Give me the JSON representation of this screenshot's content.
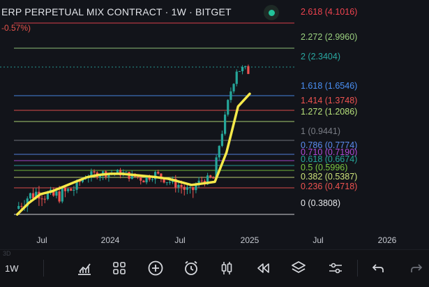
{
  "header": {
    "title": "ERP PERPETUAL MIX CONTRACT · 1W · BITGET",
    "change": "-0.57%)"
  },
  "colors": {
    "background": "#12141a",
    "candle_up": "#26a69a",
    "candle_down": "#ef5350",
    "ma": "#f5e94a",
    "live": "#22c39a"
  },
  "fib_levels": [
    {
      "ratio": "2.618",
      "price": "4.1016",
      "color": "#f0434f",
      "label": "2.618 (4.1016)"
    },
    {
      "ratio": "2.272",
      "price": "2.9960",
      "color": "#9bd17f",
      "label": "2.272 (2.9960)"
    },
    {
      "ratio": "2",
      "price": "2.3404",
      "color": "#2aa6a0",
      "label": "2 (2.3404)"
    },
    {
      "ratio": "1.618",
      "price": "1.6546",
      "color": "#4a90f5",
      "label": "1.618 (1.6546)"
    },
    {
      "ratio": "1.414",
      "price": "1.3748",
      "color": "#ef5350",
      "label": "1.414 (1.3748)"
    },
    {
      "ratio": "1.272",
      "price": "1.2086",
      "color": "#b6e07a",
      "label": "1.272 (1.2086)"
    },
    {
      "ratio": "1",
      "price": "0.9441",
      "color": "#7a7d85",
      "label": "1 (0.9441)"
    },
    {
      "ratio": "0.786",
      "price": "0.7774",
      "color": "#5b8df0",
      "label": "0.786 (0.7774)"
    },
    {
      "ratio": "0.71",
      "price": "0.7190",
      "color": "#b04bd8",
      "label": "0.710 (0.7190)"
    },
    {
      "ratio": "0.618",
      "price": "0.6674",
      "color": "#26a69a",
      "label": "0.618 (0.6674)"
    },
    {
      "ratio": "0.5",
      "price": "0.5996",
      "color": "#7cc83f",
      "label": "0.5 (0.5996)"
    },
    {
      "ratio": "0.382",
      "price": "0.5387",
      "color": "#cde27a",
      "label": "0.382 (0.5387)"
    },
    {
      "ratio": "0.236",
      "price": "0.4718",
      "color": "#ef5350",
      "label": "0.236 (0.4718)"
    },
    {
      "ratio": "0",
      "price": "0.3808",
      "color": "#e6e7ea",
      "label": "0 (0.3808)"
    }
  ],
  "x_axis": {
    "labels": [
      "Jul",
      "2024",
      "Jul",
      "2025",
      "Jul",
      "2026"
    ]
  },
  "chart_data": {
    "type": "candlestick",
    "interval": "1W",
    "price_series": {
      "name": "",
      "x": [
        "2023-05",
        "2023-06",
        "2023-07",
        "2023-08",
        "2023-09",
        "2023-10",
        "2023-11",
        "2023-12",
        "2024-01",
        "2024-02",
        "2024-03",
        "2024-04",
        "2024-05",
        "2024-06",
        "2024-07",
        "2024-08",
        "2024-09",
        "2024-10",
        "2024-11",
        "2024-12",
        "2025-01"
      ],
      "close": [
        0.4,
        0.44,
        0.46,
        0.44,
        0.45,
        0.47,
        0.55,
        0.57,
        0.58,
        0.58,
        0.55,
        0.53,
        0.57,
        0.52,
        0.49,
        0.45,
        0.52,
        0.53,
        1.25,
        2.3,
        2.25
      ]
    },
    "ma_series": {
      "values": [
        0.38,
        0.42,
        0.45,
        0.46,
        0.48,
        0.51,
        0.54,
        0.56,
        0.57,
        0.57,
        0.56,
        0.55,
        0.54,
        0.53,
        0.51,
        0.49,
        0.5,
        0.51,
        0.8,
        1.45,
        1.7
      ]
    },
    "xlim": [
      "2023-05",
      "2026-03"
    ]
  },
  "toolbar": {
    "interval_label": "1W",
    "faint_label": "3D",
    "buttons": [
      {
        "name": "indicators-icon"
      },
      {
        "name": "templates-grid-icon"
      },
      {
        "name": "add-icon"
      },
      {
        "name": "alert-clock-icon"
      },
      {
        "name": "chart-type-candles-icon"
      },
      {
        "name": "replay-icon"
      },
      {
        "name": "layers-icon"
      },
      {
        "name": "settings-sliders-icon"
      },
      {
        "name": "undo-icon"
      },
      {
        "name": "redo-icon"
      }
    ]
  }
}
